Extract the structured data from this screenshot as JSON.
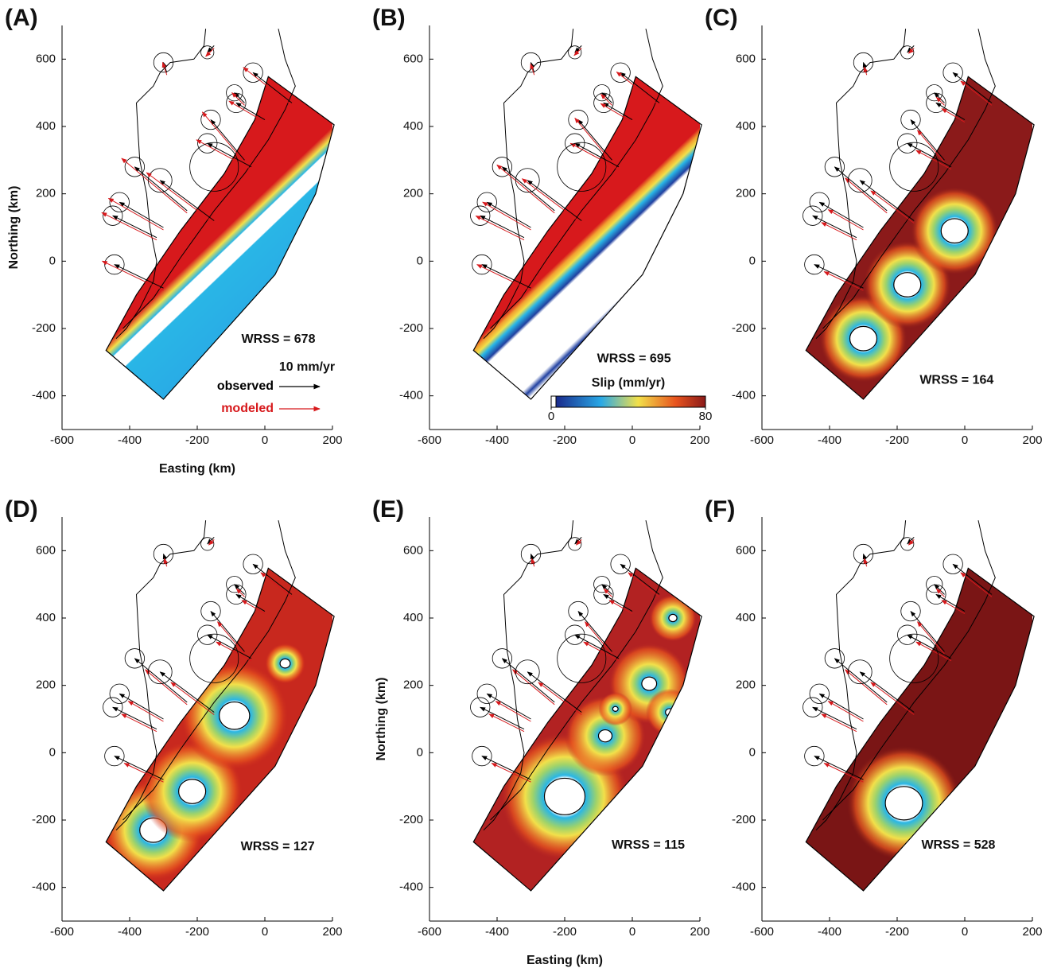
{
  "chart_data": [
    {
      "type": "map",
      "panel_label": "(A)",
      "annotation": "WRSS = 678",
      "xlabel": "Easting (km)",
      "ylabel": "Northing (km)",
      "xlim": [
        -600,
        200
      ],
      "ylim": [
        -500,
        700
      ],
      "xticks": [
        -600,
        -400,
        -200,
        0,
        200
      ],
      "yticks": [
        -400,
        -200,
        0,
        200,
        400,
        600
      ],
      "legend": {
        "scale_label": "10 mm/yr",
        "series": [
          {
            "name": "observed",
            "color": "#000000"
          },
          {
            "name": "modeled",
            "color": "#d7191c"
          }
        ]
      }
    },
    {
      "type": "map",
      "panel_label": "(B)",
      "annotation": "WRSS = 695",
      "xlim": [
        -600,
        200
      ],
      "ylim": [
        -500,
        700
      ],
      "xticks": [
        -600,
        -400,
        -200,
        0,
        200
      ],
      "yticks": [
        -400,
        -200,
        0,
        200,
        400,
        600
      ],
      "colorbar": {
        "label": "Slip (mm/yr)",
        "lim": [
          0,
          80
        ],
        "ticks": [
          0,
          80
        ]
      }
    },
    {
      "type": "map",
      "panel_label": "(C)",
      "annotation": "WRSS = 164",
      "xlim": [
        -600,
        200
      ],
      "ylim": [
        -500,
        700
      ],
      "xticks": [
        -600,
        -400,
        -200,
        0,
        200
      ],
      "yticks": [
        -400,
        -200,
        0,
        200,
        400,
        600
      ]
    },
    {
      "type": "map",
      "panel_label": "(D)",
      "annotation": "WRSS = 127",
      "xlim": [
        -600,
        200
      ],
      "ylim": [
        -500,
        700
      ],
      "xticks": [
        -600,
        -400,
        -200,
        0,
        200
      ],
      "yticks": [
        -400,
        -200,
        0,
        200,
        400,
        600
      ]
    },
    {
      "type": "map",
      "panel_label": "(E)",
      "annotation": "WRSS = 115",
      "xlabel": "Easting (km)",
      "ylabel": "Northing (km)",
      "xlim": [
        -600,
        200
      ],
      "ylim": [
        -500,
        700
      ],
      "xticks": [
        -600,
        -400,
        -200,
        0,
        200
      ],
      "yticks": [
        -400,
        -200,
        0,
        200,
        400,
        600
      ]
    },
    {
      "type": "map",
      "panel_label": "(F)",
      "annotation": "WRSS = 528",
      "xlim": [
        -600,
        200
      ],
      "ylim": [
        -500,
        700
      ],
      "xticks": [
        -600,
        -400,
        -200,
        0,
        200
      ],
      "yticks": [
        -400,
        -200,
        0,
        200,
        400,
        600
      ]
    }
  ]
}
